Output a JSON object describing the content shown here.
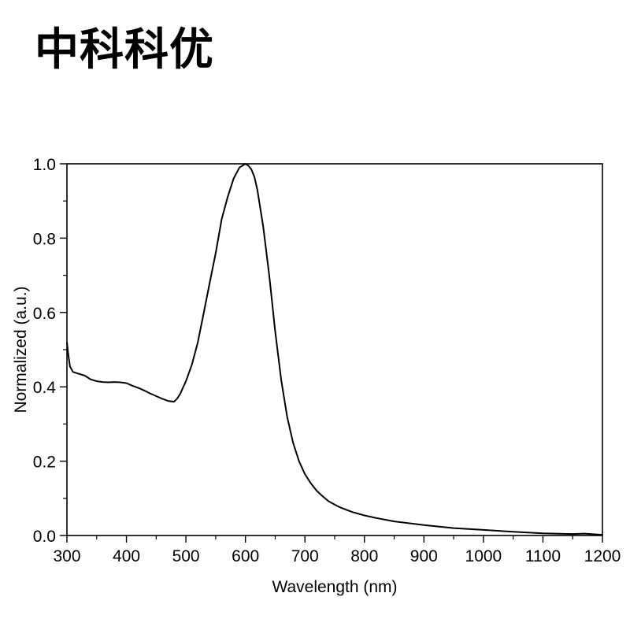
{
  "brand": "中科科优",
  "chart_data": {
    "type": "line",
    "title": "",
    "xlabel": "Wavelength (nm)",
    "ylabel": "Normalized (a.u.)",
    "xlim": [
      300,
      1200
    ],
    "ylim": [
      0.0,
      1.0
    ],
    "xticks": [
      300,
      400,
      500,
      600,
      700,
      800,
      900,
      1000,
      1100,
      1200
    ],
    "xtick_labels": [
      "300",
      "400",
      "500",
      "600",
      "700",
      "800",
      "900",
      "1000",
      "1100",
      "1200"
    ],
    "yticks": [
      0.0,
      0.2,
      0.4,
      0.6,
      0.8,
      1.0
    ],
    "ytick_labels": [
      "0.0",
      "0.2",
      "0.4",
      "0.6",
      "0.8",
      "1.0"
    ],
    "grid": false,
    "line_color": "#000000",
    "series": [
      {
        "x": [
          300,
          302,
          305,
          310,
          320,
          330,
          340,
          350,
          360,
          370,
          380,
          390,
          400,
          410,
          420,
          430,
          440,
          450,
          460,
          470,
          480,
          485,
          490,
          500,
          510,
          520,
          530,
          540,
          550,
          560,
          570,
          580,
          590,
          600,
          605,
          610,
          615,
          620,
          630,
          640,
          650,
          660,
          670,
          680,
          690,
          700,
          710,
          720,
          730,
          740,
          750,
          760,
          780,
          800,
          820,
          850,
          900,
          950,
          1000,
          1050,
          1100,
          1150,
          1170,
          1200
        ],
        "y": [
          0.52,
          0.49,
          0.455,
          0.44,
          0.435,
          0.43,
          0.42,
          0.415,
          0.413,
          0.412,
          0.413,
          0.412,
          0.41,
          0.403,
          0.397,
          0.39,
          0.382,
          0.375,
          0.368,
          0.362,
          0.36,
          0.368,
          0.38,
          0.415,
          0.46,
          0.52,
          0.6,
          0.68,
          0.76,
          0.85,
          0.91,
          0.96,
          0.99,
          1.0,
          0.995,
          0.985,
          0.965,
          0.93,
          0.83,
          0.7,
          0.55,
          0.42,
          0.32,
          0.25,
          0.2,
          0.165,
          0.14,
          0.12,
          0.105,
          0.092,
          0.083,
          0.075,
          0.063,
          0.054,
          0.047,
          0.038,
          0.028,
          0.02,
          0.015,
          0.01,
          0.006,
          0.004,
          0.005,
          0.002
        ]
      }
    ]
  }
}
